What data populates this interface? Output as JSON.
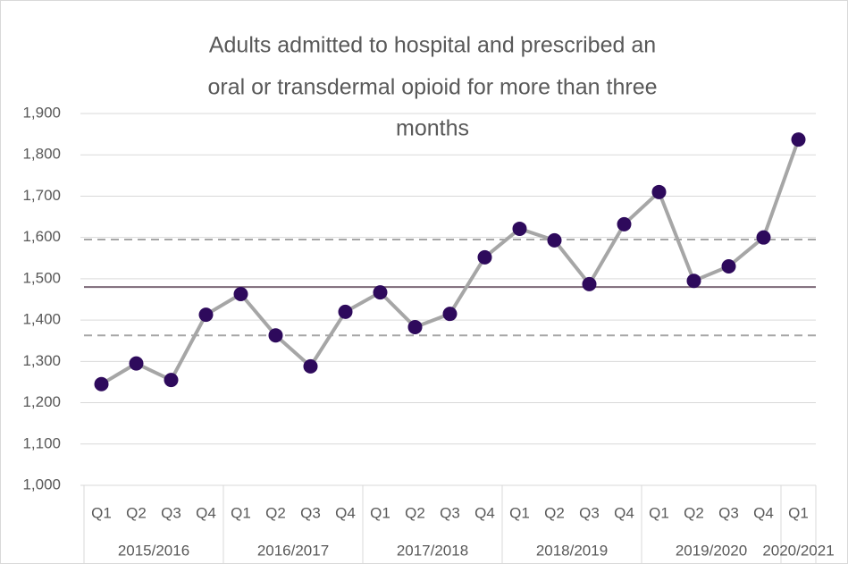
{
  "chart_data": {
    "type": "line",
    "title": [
      "Adults admitted to hospital and prescribed an",
      "oral or transdermal  opioid for more than three",
      "months"
    ],
    "groups": [
      {
        "label": "2015/2016",
        "categories": [
          "Q1",
          "Q2",
          "Q3",
          "Q4"
        ]
      },
      {
        "label": "2016/2017",
        "categories": [
          "Q1",
          "Q2",
          "Q3",
          "Q4"
        ]
      },
      {
        "label": "2017/2018",
        "categories": [
          "Q1",
          "Q2",
          "Q3",
          "Q4"
        ]
      },
      {
        "label": "2018/2019",
        "categories": [
          "Q1",
          "Q2",
          "Q3",
          "Q4"
        ]
      },
      {
        "label": "2019/2020",
        "categories": [
          "Q1",
          "Q2",
          "Q3",
          "Q4"
        ]
      },
      {
        "label": "2020/2021",
        "categories": [
          "Q1"
        ]
      }
    ],
    "values": [
      1245,
      1295,
      1255,
      1413,
      1463,
      1363,
      1288,
      1420,
      1467,
      1383,
      1415,
      1552,
      1621,
      1593,
      1487,
      1632,
      1710,
      1495,
      1530,
      1600,
      1837
    ],
    "color": "#a6a6a6",
    "marker_color": "#2e0a5c",
    "reference_lines": [
      {
        "value": 1595,
        "style": "dashed",
        "color": "#a6a6a6"
      },
      {
        "value": 1480,
        "style": "solid",
        "color": "#7b6877"
      },
      {
        "value": 1363,
        "style": "dashed",
        "color": "#a6a6a6"
      }
    ],
    "ylim": [
      1000,
      1900
    ],
    "yticks": [
      {
        "value": 1000,
        "label": "1,000"
      },
      {
        "value": 1100,
        "label": "1,100"
      },
      {
        "value": 1200,
        "label": "1,200"
      },
      {
        "value": 1300,
        "label": "1,300"
      },
      {
        "value": 1400,
        "label": "1,400"
      },
      {
        "value": 1500,
        "label": "1,500"
      },
      {
        "value": 1600,
        "label": "1,600"
      },
      {
        "value": 1700,
        "label": "1,700"
      },
      {
        "value": 1800,
        "label": "1,800"
      },
      {
        "value": 1900,
        "label": "1,900"
      }
    ],
    "grid": true
  }
}
